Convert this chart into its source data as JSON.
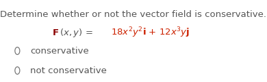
{
  "title": "Determine whether or not the vector field is conservative.",
  "title_color": "#555555",
  "title_fontsize": 9.5,
  "bg_color": "#ffffff",
  "option1_label": "conservative",
  "option2_label": "not conservative",
  "option_color": "#555555",
  "option_fontsize": 9.5,
  "eq_dark_color": "#8B0000",
  "eq_label_color": "#555555",
  "eq_orange_color": "#cc2200",
  "circle_color": "#777777"
}
